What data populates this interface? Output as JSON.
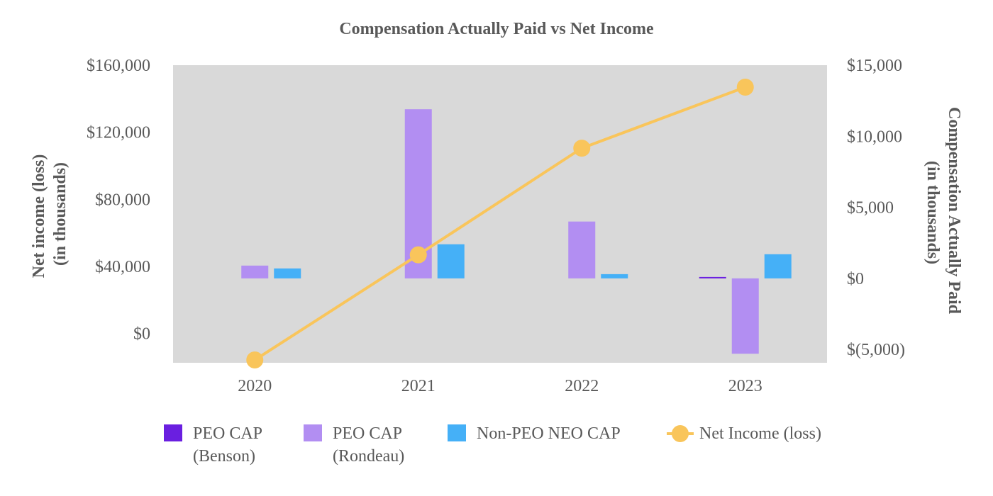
{
  "chart_data": {
    "type": "bar",
    "title": "Compensation Actually Paid vs Net Income",
    "categories": [
      "2020",
      "2021",
      "2022",
      "2023"
    ],
    "y_left": {
      "label_lines": [
        "Net income (loss)",
        "(in thousands)"
      ],
      "range": [
        -17500,
        160000
      ],
      "ticks": [
        0,
        40000,
        80000,
        120000,
        160000
      ],
      "tick_labels": [
        "$0",
        "$40,000",
        "$80,000",
        "$120,000",
        "$160,000"
      ]
    },
    "y_right": {
      "label_lines": [
        "Compensation Actually Paid",
        "(in thousands)"
      ],
      "range": [
        -5938,
        15000
      ],
      "ticks": [
        -5000,
        0,
        5000,
        10000,
        15000
      ],
      "tick_labels": [
        "$(5,000)",
        "$0",
        "$5,000",
        "$10,000",
        "$15,000"
      ]
    },
    "bar_series": [
      {
        "name_lines": [
          "PEO CAP",
          "(Benson)"
        ],
        "color": "#6a1fe0",
        "axis": "right",
        "values": [
          null,
          null,
          null,
          100
        ]
      },
      {
        "name_lines": [
          "PEO CAP",
          "(Rondeau)"
        ],
        "color": "#b28ef2",
        "axis": "right",
        "values": [
          900,
          11900,
          4000,
          -5300
        ]
      },
      {
        "name_lines": [
          "Non-PEO NEO CAP"
        ],
        "color": "#45b0f7",
        "axis": "right",
        "values": [
          700,
          2400,
          300,
          1700
        ]
      }
    ],
    "line_series": {
      "name": "Net Income (loss)",
      "color": "#f9c55b",
      "axis": "left",
      "values": [
        -15800,
        46900,
        110500,
        146900
      ]
    },
    "grid": false,
    "plot_background": "#d9d9d9",
    "legend_position": "bottom"
  }
}
